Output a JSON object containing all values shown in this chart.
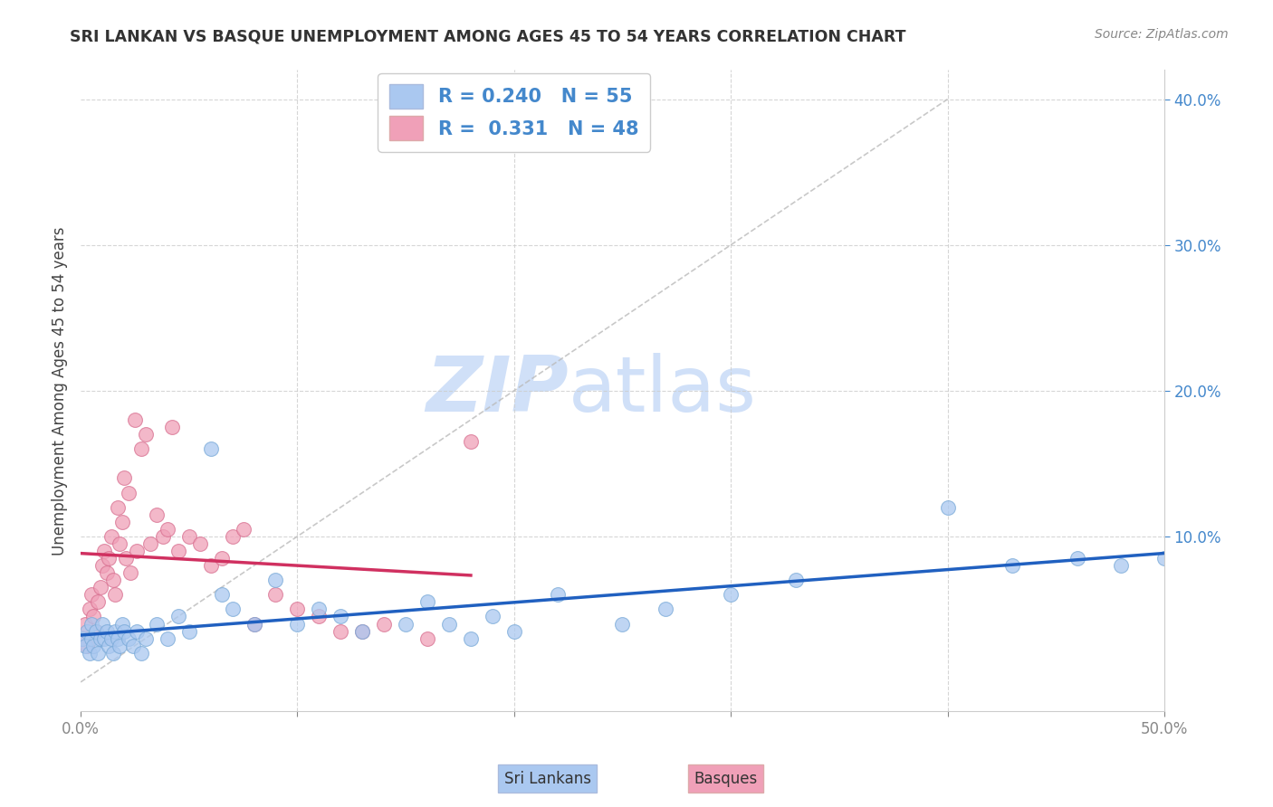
{
  "title": "SRI LANKAN VS BASQUE UNEMPLOYMENT AMONG AGES 45 TO 54 YEARS CORRELATION CHART",
  "source": "Source: ZipAtlas.com",
  "ylabel": "Unemployment Among Ages 45 to 54 years",
  "xlim": [
    0.0,
    0.5
  ],
  "ylim": [
    -0.02,
    0.42
  ],
  "sri_lankan_color": "#aac8f0",
  "sri_lankan_edge": "#7aaad8",
  "basque_color": "#f0a0b8",
  "basque_edge": "#d87090",
  "trend_sri_color": "#2060c0",
  "trend_basque_color": "#d03060",
  "diagonal_color": "#bbbbbb",
  "R_sri": 0.24,
  "N_sri": 55,
  "R_basque": 0.331,
  "N_basque": 48,
  "watermark_zip": "ZIP",
  "watermark_atlas": "atlas",
  "watermark_color": "#d0e0f8",
  "background_color": "#ffffff",
  "grid_color": "#cccccc",
  "sri_lankan_x": [
    0.001,
    0.002,
    0.003,
    0.004,
    0.005,
    0.005,
    0.006,
    0.007,
    0.008,
    0.009,
    0.01,
    0.011,
    0.012,
    0.013,
    0.014,
    0.015,
    0.016,
    0.017,
    0.018,
    0.019,
    0.02,
    0.022,
    0.024,
    0.026,
    0.028,
    0.03,
    0.035,
    0.04,
    0.045,
    0.05,
    0.06,
    0.065,
    0.07,
    0.08,
    0.09,
    0.1,
    0.11,
    0.12,
    0.13,
    0.15,
    0.16,
    0.17,
    0.18,
    0.19,
    0.2,
    0.22,
    0.25,
    0.27,
    0.3,
    0.33,
    0.4,
    0.43,
    0.46,
    0.48,
    0.5
  ],
  "sri_lankan_y": [
    0.03,
    0.025,
    0.035,
    0.02,
    0.04,
    0.03,
    0.025,
    0.035,
    0.02,
    0.03,
    0.04,
    0.03,
    0.035,
    0.025,
    0.03,
    0.02,
    0.035,
    0.03,
    0.025,
    0.04,
    0.035,
    0.03,
    0.025,
    0.035,
    0.02,
    0.03,
    0.04,
    0.03,
    0.045,
    0.035,
    0.16,
    0.06,
    0.05,
    0.04,
    0.07,
    0.04,
    0.05,
    0.045,
    0.035,
    0.04,
    0.055,
    0.04,
    0.03,
    0.045,
    0.035,
    0.06,
    0.04,
    0.05,
    0.06,
    0.07,
    0.12,
    0.08,
    0.085,
    0.08,
    0.085
  ],
  "basque_x": [
    0.001,
    0.002,
    0.003,
    0.004,
    0.005,
    0.006,
    0.007,
    0.008,
    0.009,
    0.01,
    0.011,
    0.012,
    0.013,
    0.014,
    0.015,
    0.016,
    0.017,
    0.018,
    0.019,
    0.02,
    0.021,
    0.022,
    0.023,
    0.025,
    0.026,
    0.028,
    0.03,
    0.032,
    0.035,
    0.038,
    0.04,
    0.042,
    0.045,
    0.05,
    0.055,
    0.06,
    0.065,
    0.07,
    0.075,
    0.08,
    0.09,
    0.1,
    0.11,
    0.12,
    0.13,
    0.14,
    0.16,
    0.18
  ],
  "basque_y": [
    0.03,
    0.04,
    0.025,
    0.05,
    0.06,
    0.045,
    0.035,
    0.055,
    0.065,
    0.08,
    0.09,
    0.075,
    0.085,
    0.1,
    0.07,
    0.06,
    0.12,
    0.095,
    0.11,
    0.14,
    0.085,
    0.13,
    0.075,
    0.18,
    0.09,
    0.16,
    0.17,
    0.095,
    0.115,
    0.1,
    0.105,
    0.175,
    0.09,
    0.1,
    0.095,
    0.08,
    0.085,
    0.1,
    0.105,
    0.04,
    0.06,
    0.05,
    0.045,
    0.035,
    0.035,
    0.04,
    0.03,
    0.165
  ],
  "legend_text_sri": "R = 0.240   N = 55",
  "legend_text_basque": "R =  0.331   N = 48"
}
